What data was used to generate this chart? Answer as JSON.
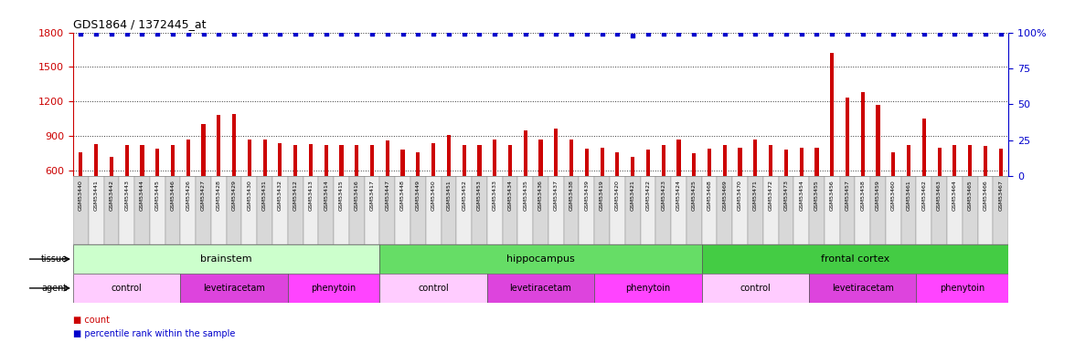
{
  "title": "GDS1864 / 1372445_at",
  "samples": [
    "GSM53440",
    "GSM53441",
    "GSM53442",
    "GSM53443",
    "GSM53444",
    "GSM53445",
    "GSM53446",
    "GSM53426",
    "GSM53427",
    "GSM53428",
    "GSM53429",
    "GSM53430",
    "GSM53431",
    "GSM53432",
    "GSM53412",
    "GSM53413",
    "GSM53414",
    "GSM53415",
    "GSM53416",
    "GSM53417",
    "GSM53447",
    "GSM53448",
    "GSM53449",
    "GSM53450",
    "GSM53451",
    "GSM53452",
    "GSM53453",
    "GSM53433",
    "GSM53434",
    "GSM53435",
    "GSM53436",
    "GSM53437",
    "GSM53438",
    "GSM53439",
    "GSM53419",
    "GSM53420",
    "GSM53421",
    "GSM53422",
    "GSM53423",
    "GSM53424",
    "GSM53425",
    "GSM53468",
    "GSM53469",
    "GSM53470",
    "GSM53471",
    "GSM53472",
    "GSM53473",
    "GSM53454",
    "GSM53455",
    "GSM53456",
    "GSM53457",
    "GSM53458",
    "GSM53459",
    "GSM53460",
    "GSM53461",
    "GSM53462",
    "GSM53463",
    "GSM53464",
    "GSM53465",
    "GSM53466",
    "GSM53467"
  ],
  "counts": [
    760,
    830,
    720,
    820,
    820,
    790,
    820,
    870,
    1000,
    1080,
    1090,
    870,
    870,
    840,
    820,
    830,
    820,
    820,
    820,
    820,
    860,
    780,
    760,
    840,
    910,
    820,
    820,
    870,
    820,
    950,
    870,
    960,
    870,
    790,
    800,
    760,
    720,
    780,
    820,
    870,
    750,
    790,
    820,
    800,
    870,
    820,
    780,
    800,
    800,
    1620,
    1230,
    1280,
    1170,
    760,
    820,
    1050,
    800,
    820,
    820,
    810,
    790
  ],
  "percentile_ranks": [
    99,
    99,
    99,
    99,
    99,
    99,
    99,
    99,
    99,
    99,
    99,
    99,
    99,
    99,
    99,
    99,
    99,
    99,
    99,
    99,
    99,
    99,
    99,
    99,
    99,
    99,
    99,
    99,
    99,
    99,
    99,
    99,
    99,
    99,
    99,
    99,
    98,
    99,
    99,
    99,
    99,
    99,
    99,
    99,
    99,
    99,
    99,
    99,
    99,
    99,
    99,
    99,
    99,
    99,
    99,
    99,
    99,
    99,
    99,
    99,
    99
  ],
  "ylim_left": [
    550,
    1800
  ],
  "ylim_right": [
    0,
    100
  ],
  "yticks_left": [
    600,
    900,
    1200,
    1500,
    1800
  ],
  "yticks_right": [
    0,
    25,
    50,
    75,
    100
  ],
  "bar_color": "#cc0000",
  "dot_color": "#0000cc",
  "tissue_groups": [
    {
      "label": "brainstem",
      "start": 0,
      "end": 19,
      "color": "#ccffcc"
    },
    {
      "label": "hippocampus",
      "start": 20,
      "end": 40,
      "color": "#66dd66"
    },
    {
      "label": "frontal cortex",
      "start": 41,
      "end": 60,
      "color": "#44cc44"
    }
  ],
  "agent_groups": [
    {
      "label": "control",
      "start": 0,
      "end": 6,
      "color": "#ffccff"
    },
    {
      "label": "levetiracetam",
      "start": 7,
      "end": 13,
      "color": "#dd44dd"
    },
    {
      "label": "phenytoin",
      "start": 14,
      "end": 19,
      "color": "#ff44ff"
    },
    {
      "label": "control",
      "start": 20,
      "end": 26,
      "color": "#ffccff"
    },
    {
      "label": "levetiracetam",
      "start": 27,
      "end": 33,
      "color": "#dd44dd"
    },
    {
      "label": "phenytoin",
      "start": 34,
      "end": 40,
      "color": "#ff44ff"
    },
    {
      "label": "control",
      "start": 41,
      "end": 47,
      "color": "#ffccff"
    },
    {
      "label": "levetiracetam",
      "start": 48,
      "end": 54,
      "color": "#dd44dd"
    },
    {
      "label": "phenytoin",
      "start": 55,
      "end": 60,
      "color": "#ff44ff"
    }
  ],
  "background_color": "#ffffff",
  "grid_color": "#333333",
  "axis_color_left": "#cc0000",
  "axis_color_right": "#0000cc",
  "xlabel_bg_even": "#d8d8d8",
  "xlabel_bg_odd": "#eeeeee"
}
